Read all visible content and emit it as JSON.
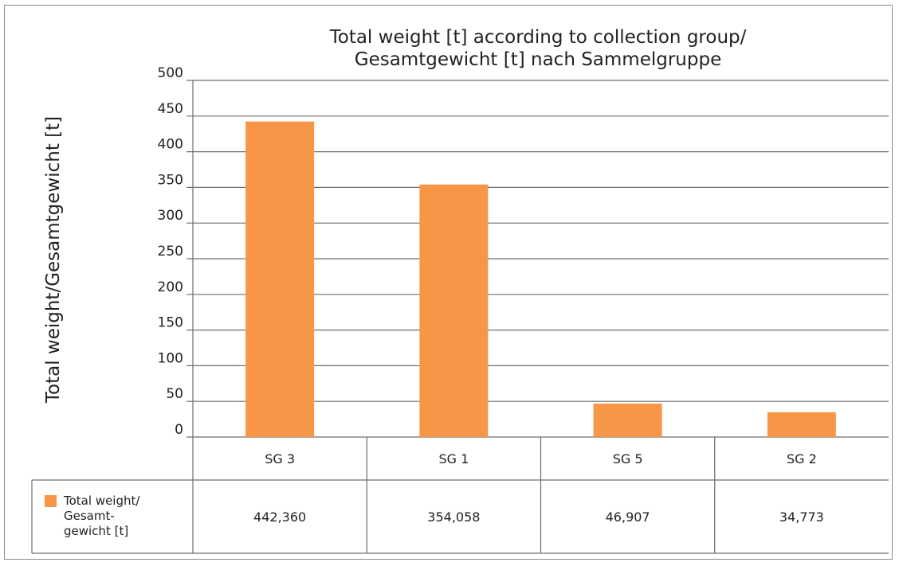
{
  "chart_data": {
    "type": "bar",
    "title": "Total weight [t] according to collection group/",
    "subtitle": "Gesamtgewicht [t] nach Sammelgruppe",
    "xlabel": "",
    "ylabel": "Total weight/Gesamtgewicht [t]",
    "categories": [
      "SG 3",
      "SG 1",
      "SG 5",
      "SG 2"
    ],
    "series": [
      {
        "name": "Total weight/Gesamt-gewicht [t]",
        "values": [
          442.36,
          354.058,
          46.907,
          34.773
        ],
        "labels": [
          "442,360",
          "354,058",
          "46,907",
          "34,773"
        ],
        "color": "#f79646"
      }
    ],
    "ylim": [
      0,
      500
    ],
    "yticks": [
      "0",
      "50",
      "100",
      "150",
      "200",
      "250",
      "300",
      "350",
      "400",
      "450",
      "500"
    ],
    "grid": true,
    "legend": "data-table-left",
    "legend_lines": [
      "Total weight/",
      "Gesamt-",
      "gewicht [t]"
    ]
  }
}
